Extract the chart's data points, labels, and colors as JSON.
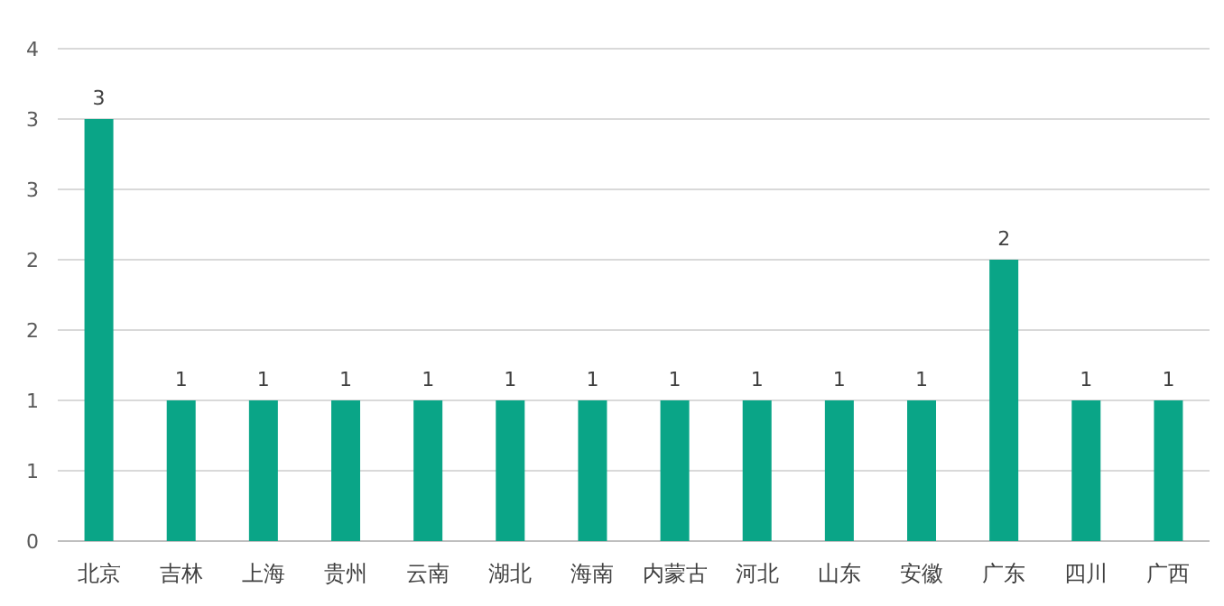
{
  "chart_data": {
    "type": "bar",
    "categories": [
      "北京",
      "吉林",
      "上海",
      "贵州",
      "云南",
      "湖北",
      "海南",
      "内蒙古",
      "河北",
      "山东",
      "安徽",
      "广东",
      "四川",
      "广西"
    ],
    "values": [
      3,
      1,
      1,
      1,
      1,
      1,
      1,
      1,
      1,
      1,
      1,
      2,
      1,
      1
    ],
    "color": "#0aa587",
    "data_labels": true,
    "grid": "y",
    "ylim": [
      0,
      3.5
    ],
    "yticks": [
      0,
      {
        "value": 0.5,
        "label": "1"
      },
      1,
      {
        "value": 1.5,
        "label": "2"
      },
      2,
      {
        "value": 2.5,
        "label": "3"
      },
      3,
      {
        "value": 3.5,
        "label": "4"
      }
    ]
  }
}
